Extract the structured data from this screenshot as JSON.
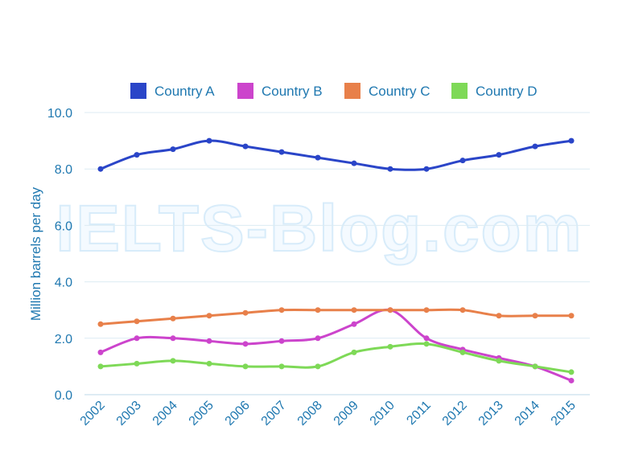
{
  "chart_data": {
    "type": "line",
    "watermark": "IELTS-Blog.com",
    "y_label": "Million barrels per day",
    "categories": [
      "2002",
      "2003",
      "2004",
      "2005",
      "2006",
      "2007",
      "2008",
      "2009",
      "2010",
      "2011",
      "2012",
      "2013",
      "2014",
      "2015"
    ],
    "series": [
      {
        "name": "Country A",
        "color": "#2a45c8",
        "values": [
          8.0,
          8.5,
          8.7,
          9.0,
          8.8,
          8.6,
          8.4,
          8.2,
          8.0,
          8.0,
          8.3,
          8.5,
          8.8,
          9.0
        ]
      },
      {
        "name": "Country B",
        "color": "#cc44cc",
        "values": [
          1.5,
          2.0,
          2.0,
          1.9,
          1.8,
          1.9,
          2.0,
          2.5,
          3.0,
          2.0,
          1.6,
          1.3,
          1.0,
          0.5
        ]
      },
      {
        "name": "Country C",
        "color": "#e8804a",
        "values": [
          2.5,
          2.6,
          2.7,
          2.8,
          2.9,
          3.0,
          3.0,
          3.0,
          3.0,
          3.0,
          3.0,
          2.8,
          2.8,
          2.8
        ]
      },
      {
        "name": "Country D",
        "color": "#7ed957",
        "values": [
          1.0,
          1.1,
          1.2,
          1.1,
          1.0,
          1.0,
          1.0,
          1.5,
          1.7,
          1.8,
          1.5,
          1.2,
          1.0,
          0.8
        ]
      }
    ],
    "ylim": [
      0,
      10
    ],
    "yticks": [
      {
        "value": 0,
        "label": "0.0"
      },
      {
        "value": 2,
        "label": "2.0"
      },
      {
        "value": 4,
        "label": "4.0"
      },
      {
        "value": 6,
        "label": "6.0"
      },
      {
        "value": 8,
        "label": "8.0"
      },
      {
        "value": 10,
        "label": "10.0"
      }
    ],
    "grid": true,
    "legend": "top"
  }
}
